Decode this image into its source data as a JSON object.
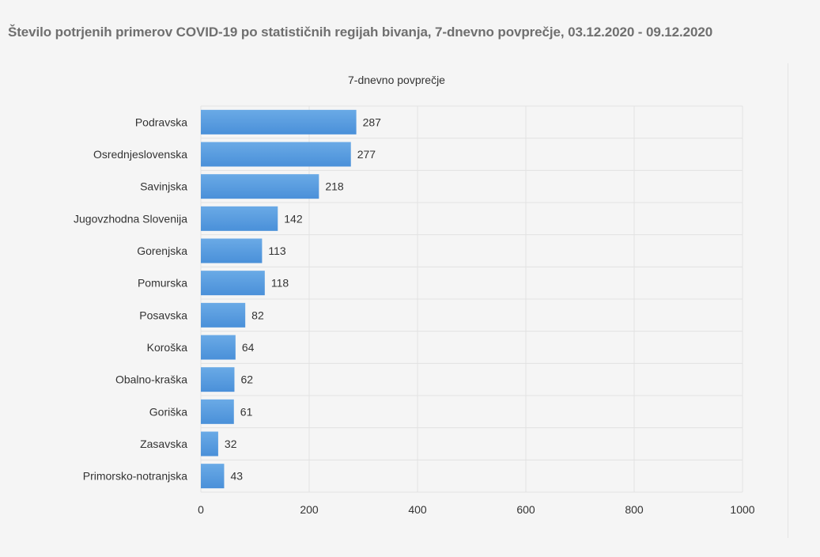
{
  "page": {
    "title": "Število potrjenih primerov COVID-19 po statističnih regijah bivanja, 7-dnevno povprečje, 03.12.2020 - 09.12.2020"
  },
  "chart_data": {
    "type": "bar",
    "orientation": "horizontal",
    "title": "7-dnevno povprečje",
    "xlabel": "",
    "ylabel": "",
    "categories": [
      "Podravska",
      "Osrednjeslovenska",
      "Savinjska",
      "Jugovzhodna Slovenija",
      "Gorenjska",
      "Pomurska",
      "Posavska",
      "Koroška",
      "Obalno-kraška",
      "Goriška",
      "Zasavska",
      "Primorsko-notranjska"
    ],
    "values": [
      287,
      277,
      218,
      142,
      113,
      118,
      82,
      64,
      62,
      61,
      32,
      43
    ],
    "xlim": [
      0,
      1000
    ],
    "xticks": [
      0,
      200,
      400,
      600,
      800,
      1000
    ],
    "grid": true,
    "legend": "none",
    "bar_color": "#4a90d9",
    "bar_color_light": "#6aaae6"
  }
}
